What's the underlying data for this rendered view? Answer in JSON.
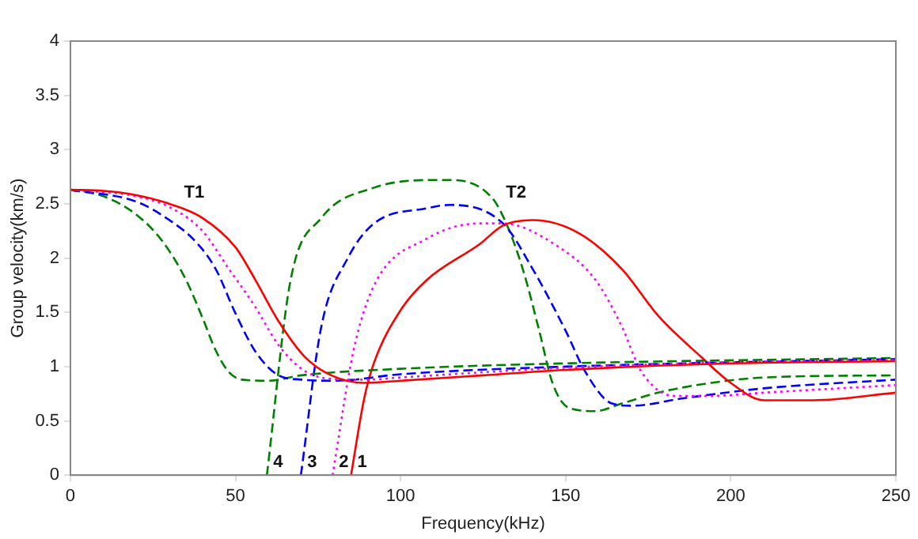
{
  "chart_data": {
    "type": "line",
    "xlabel": "Frequency(kHz)",
    "ylabel": "Group velocity(km/s)",
    "xlim": [
      0,
      250
    ],
    "ylim": [
      0,
      4
    ],
    "xticks": [
      0,
      50,
      100,
      150,
      200,
      250
    ],
    "yticks": [
      0,
      0.5,
      1,
      1.5,
      2,
      2.5,
      3,
      3.5,
      4
    ],
    "grid": false,
    "legend": false,
    "marker": "none",
    "series": [
      {
        "color": "#ff0000",
        "line_style": "solid",
        "x": [
          0,
          10,
          20,
          30,
          40,
          50,
          56,
          63,
          71,
          79,
          89,
          100,
          125,
          150,
          200,
          250
        ],
        "values": [
          2.63,
          2.62,
          2.58,
          2.5,
          2.37,
          2.1,
          1.8,
          1.42,
          1.09,
          0.92,
          0.85,
          0.87,
          0.92,
          0.97,
          1.03,
          1.05
        ]
      },
      {
        "color": "#ff00ff",
        "line_style": "dotted",
        "x": [
          0,
          20,
          30,
          40,
          48,
          56,
          63,
          70,
          78,
          90,
          100,
          150,
          200,
          250
        ],
        "values": [
          2.63,
          2.57,
          2.47,
          2.25,
          1.9,
          1.55,
          1.2,
          0.98,
          0.89,
          0.88,
          0.9,
          0.99,
          1.04,
          1.06
        ]
      },
      {
        "color": "#0000ff",
        "line_style": "dashed",
        "x": [
          0,
          20,
          30,
          38,
          44,
          50,
          56,
          63,
          70,
          80,
          100,
          150,
          250
        ],
        "values": [
          2.63,
          2.52,
          2.35,
          2.15,
          1.9,
          1.49,
          1.14,
          0.92,
          0.88,
          0.87,
          0.93,
          1,
          1.07
        ]
      },
      {
        "color": "#008000",
        "line_style": "dashed",
        "x": [
          0,
          10,
          20,
          28,
          35,
          40,
          44,
          48,
          52,
          60,
          70,
          100,
          150,
          250
        ],
        "values": [
          2.63,
          2.57,
          2.4,
          2.15,
          1.8,
          1.45,
          1.15,
          0.95,
          0.88,
          0.87,
          0.92,
          0.98,
          1.03,
          1.08
        ]
      },
      {
        "name": "1",
        "color": "#ff0000",
        "line_style": "solid",
        "x": [
          85,
          89,
          92,
          100,
          108,
          124,
          131,
          140,
          154,
          167,
          178,
          191,
          200,
          210,
          225,
          250
        ],
        "values": [
          0,
          0.71,
          1.04,
          1.52,
          1.8,
          2.13,
          2.3,
          2.35,
          2.23,
          1.9,
          1.47,
          1.09,
          0.85,
          0.69,
          0.69,
          0.76
        ]
      },
      {
        "name": "2",
        "color": "#ff00ff",
        "line_style": "dotted",
        "x": [
          79.4,
          85.7,
          92,
          108,
          124,
          131,
          146.5,
          159,
          167,
          173,
          183,
          194,
          210,
          250
        ],
        "values": [
          0,
          1.14,
          1.75,
          2.18,
          2.32,
          2.32,
          2.13,
          1.8,
          1.37,
          0.95,
          0.73,
          0.73,
          0.76,
          0.83
        ]
      },
      {
        "name": "3",
        "color": "#0000ff",
        "line_style": "dashed",
        "x": [
          69.8,
          76,
          84,
          92,
          108,
          115,
          131,
          140,
          150,
          156,
          164,
          170,
          186,
          210,
          250
        ],
        "values": [
          0,
          1.37,
          2,
          2.32,
          2.46,
          2.49,
          2.32,
          1.9,
          1.33,
          0.95,
          0.66,
          0.64,
          0.71,
          0.8,
          0.88
        ]
      },
      {
        "name": "4",
        "color": "#008000",
        "line_style": "dashed",
        "x": [
          59.5,
          66.7,
          76,
          92,
          111,
          115,
          127.6,
          132,
          137,
          142,
          146,
          151,
          159,
          167,
          178,
          194,
          210,
          250
        ],
        "values": [
          0,
          1.8,
          2.37,
          2.65,
          2.72,
          2.72,
          2.56,
          2.32,
          1.9,
          1.33,
          0.85,
          0.62,
          0.59,
          0.66,
          0.76,
          0.85,
          0.9,
          0.92
        ]
      }
    ],
    "annotations": [
      "T1",
      "T2"
    ]
  }
}
